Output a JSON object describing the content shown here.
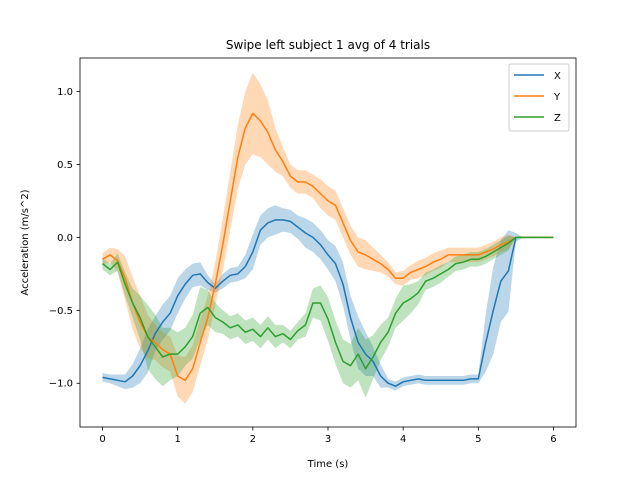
{
  "chart_data": {
    "type": "line",
    "title": "Swipe left subject 1 avg of 4 trials",
    "xlabel": "Time (s)",
    "ylabel": "Acceleration (m/s^2)",
    "xlim": [
      -0.3,
      6.3
    ],
    "ylim": [
      -1.3,
      1.23
    ],
    "xticks": [
      0,
      1,
      2,
      3,
      4,
      5,
      6
    ],
    "yticks": [
      -1.0,
      -0.5,
      0.0,
      0.5,
      1.0
    ],
    "ytick_labels": [
      "−1.0",
      "−0.5",
      "0.0",
      "0.5",
      "1.0"
    ],
    "grid": false,
    "legend_position": "top-right",
    "series": [
      {
        "name": "X",
        "color": "#1f77b4",
        "x": [
          0,
          0.1,
          0.2,
          0.3,
          0.4,
          0.5,
          0.6,
          0.7,
          0.8,
          0.9,
          1.0,
          1.1,
          1.2,
          1.3,
          1.4,
          1.5,
          1.6,
          1.7,
          1.8,
          1.9,
          2.0,
          2.1,
          2.2,
          2.3,
          2.4,
          2.5,
          2.6,
          2.7,
          2.8,
          2.9,
          3.0,
          3.1,
          3.2,
          3.3,
          3.4,
          3.5,
          3.6,
          3.7,
          3.8,
          3.9,
          4.0,
          4.1,
          4.2,
          4.3,
          4.4,
          4.5,
          4.6,
          4.7,
          4.8,
          4.9,
          5.0,
          5.1,
          5.2,
          5.3,
          5.4,
          5.5,
          5.6,
          5.7,
          5.8,
          5.9,
          6.0
        ],
        "y": [
          -0.96,
          -0.97,
          -0.98,
          -0.99,
          -0.95,
          -0.88,
          -0.78,
          -0.66,
          -0.58,
          -0.52,
          -0.4,
          -0.32,
          -0.26,
          -0.25,
          -0.31,
          -0.35,
          -0.3,
          -0.26,
          -0.25,
          -0.2,
          -0.1,
          0.05,
          0.1,
          0.12,
          0.12,
          0.11,
          0.07,
          0.03,
          0.0,
          -0.05,
          -0.12,
          -0.18,
          -0.32,
          -0.55,
          -0.72,
          -0.8,
          -0.85,
          -0.95,
          -1.0,
          -1.02,
          -0.99,
          -0.98,
          -0.97,
          -0.98,
          -0.98,
          -0.98,
          -0.98,
          -0.98,
          -0.98,
          -0.97,
          -0.97,
          -0.72,
          -0.5,
          -0.3,
          -0.23,
          0.0,
          0.0,
          0.0,
          0.0,
          0.0,
          0.0
        ],
        "band": [
          0.03,
          0.03,
          0.04,
          0.05,
          0.08,
          0.12,
          0.15,
          0.12,
          0.12,
          0.12,
          0.12,
          0.1,
          0.08,
          0.08,
          0.05,
          0.03,
          0.05,
          0.05,
          0.05,
          0.08,
          0.12,
          0.1,
          0.1,
          0.1,
          0.08,
          0.08,
          0.08,
          0.1,
          0.1,
          0.1,
          0.1,
          0.12,
          0.15,
          0.15,
          0.18,
          0.15,
          0.1,
          0.08,
          0.03,
          0.03,
          0.03,
          0.03,
          0.03,
          0.03,
          0.03,
          0.03,
          0.03,
          0.03,
          0.03,
          0.03,
          0.03,
          0.2,
          0.3,
          0.28,
          0.28,
          0.03,
          0.0,
          0.0,
          0.0,
          0.0,
          0.0
        ]
      },
      {
        "name": "Y",
        "color": "#ff7f0e",
        "x": [
          0,
          0.1,
          0.2,
          0.3,
          0.4,
          0.5,
          0.6,
          0.7,
          0.8,
          0.9,
          1.0,
          1.1,
          1.2,
          1.3,
          1.4,
          1.5,
          1.6,
          1.7,
          1.8,
          1.9,
          2.0,
          2.1,
          2.2,
          2.3,
          2.4,
          2.5,
          2.6,
          2.7,
          2.8,
          2.9,
          3.0,
          3.1,
          3.2,
          3.3,
          3.4,
          3.5,
          3.6,
          3.7,
          3.8,
          3.9,
          4.0,
          4.1,
          4.2,
          4.3,
          4.4,
          4.5,
          4.6,
          4.7,
          4.8,
          4.9,
          5.0,
          5.1,
          5.2,
          5.3,
          5.4,
          5.5,
          5.6,
          5.7,
          5.8,
          5.9,
          6.0
        ],
        "y": [
          -0.15,
          -0.12,
          -0.16,
          -0.28,
          -0.45,
          -0.58,
          -0.68,
          -0.72,
          -0.77,
          -0.8,
          -0.95,
          -0.98,
          -0.9,
          -0.72,
          -0.55,
          -0.32,
          -0.05,
          0.25,
          0.55,
          0.75,
          0.85,
          0.8,
          0.72,
          0.6,
          0.52,
          0.42,
          0.38,
          0.38,
          0.35,
          0.3,
          0.25,
          0.22,
          0.1,
          -0.02,
          -0.1,
          -0.12,
          -0.15,
          -0.18,
          -0.22,
          -0.28,
          -0.28,
          -0.24,
          -0.22,
          -0.2,
          -0.17,
          -0.15,
          -0.12,
          -0.12,
          -0.12,
          -0.12,
          -0.12,
          -0.1,
          -0.08,
          -0.05,
          -0.03,
          0.0,
          0.0,
          0.0,
          0.0,
          0.0,
          0.0
        ],
        "band": [
          0.04,
          0.05,
          0.08,
          0.15,
          0.18,
          0.18,
          0.15,
          0.12,
          0.12,
          0.12,
          0.14,
          0.16,
          0.16,
          0.16,
          0.15,
          0.15,
          0.18,
          0.2,
          0.22,
          0.25,
          0.28,
          0.25,
          0.22,
          0.15,
          0.1,
          0.08,
          0.08,
          0.08,
          0.08,
          0.1,
          0.1,
          0.1,
          0.1,
          0.1,
          0.1,
          0.1,
          0.08,
          0.06,
          0.05,
          0.04,
          0.05,
          0.05,
          0.06,
          0.06,
          0.06,
          0.06,
          0.05,
          0.05,
          0.05,
          0.05,
          0.05,
          0.05,
          0.05,
          0.05,
          0.05,
          0.0,
          0.0,
          0.0,
          0.0,
          0.0,
          0.0
        ]
      },
      {
        "name": "Z",
        "color": "#2ca02c",
        "x": [
          0,
          0.1,
          0.2,
          0.3,
          0.4,
          0.5,
          0.6,
          0.7,
          0.8,
          0.9,
          1.0,
          1.1,
          1.2,
          1.3,
          1.4,
          1.5,
          1.6,
          1.7,
          1.8,
          1.9,
          2.0,
          2.1,
          2.2,
          2.3,
          2.4,
          2.5,
          2.6,
          2.7,
          2.8,
          2.9,
          3.0,
          3.1,
          3.2,
          3.3,
          3.4,
          3.5,
          3.6,
          3.7,
          3.8,
          3.9,
          4.0,
          4.1,
          4.2,
          4.3,
          4.4,
          4.5,
          4.6,
          4.7,
          4.8,
          4.9,
          5.0,
          5.1,
          5.2,
          5.3,
          5.4,
          5.5,
          5.6,
          5.7,
          5.8,
          5.9,
          6.0
        ],
        "y": [
          -0.18,
          -0.22,
          -0.17,
          -0.32,
          -0.45,
          -0.55,
          -0.68,
          -0.75,
          -0.82,
          -0.8,
          -0.8,
          -0.75,
          -0.68,
          -0.52,
          -0.48,
          -0.55,
          -0.58,
          -0.62,
          -0.6,
          -0.65,
          -0.63,
          -0.68,
          -0.62,
          -0.68,
          -0.66,
          -0.7,
          -0.64,
          -0.6,
          -0.45,
          -0.45,
          -0.56,
          -0.72,
          -0.85,
          -0.88,
          -0.8,
          -0.9,
          -0.82,
          -0.72,
          -0.65,
          -0.52,
          -0.45,
          -0.42,
          -0.38,
          -0.3,
          -0.28,
          -0.25,
          -0.22,
          -0.18,
          -0.17,
          -0.15,
          -0.15,
          -0.13,
          -0.1,
          -0.07,
          -0.04,
          0.0,
          0.0,
          0.0,
          0.0,
          0.0,
          0.0
        ],
        "band": [
          0.04,
          0.04,
          0.06,
          0.08,
          0.1,
          0.15,
          0.22,
          0.22,
          0.2,
          0.18,
          0.15,
          0.13,
          0.15,
          0.18,
          0.12,
          0.1,
          0.08,
          0.08,
          0.08,
          0.08,
          0.08,
          0.08,
          0.08,
          0.08,
          0.06,
          0.06,
          0.06,
          0.08,
          0.1,
          0.12,
          0.15,
          0.15,
          0.15,
          0.15,
          0.18,
          0.2,
          0.15,
          0.12,
          0.1,
          0.1,
          0.12,
          0.1,
          0.08,
          0.06,
          0.06,
          0.06,
          0.05,
          0.05,
          0.05,
          0.05,
          0.05,
          0.05,
          0.05,
          0.05,
          0.05,
          0.0,
          0.0,
          0.0,
          0.0,
          0.0,
          0.0
        ]
      }
    ]
  }
}
